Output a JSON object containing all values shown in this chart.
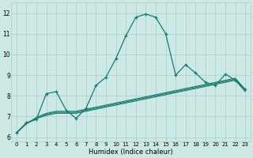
{
  "xlabel": "Humidex (Indice chaleur)",
  "xlim": [
    -0.5,
    23.5
  ],
  "ylim": [
    5.8,
    12.5
  ],
  "yticks": [
    6,
    7,
    8,
    9,
    10,
    11,
    12
  ],
  "xticks": [
    0,
    1,
    2,
    3,
    4,
    5,
    6,
    7,
    8,
    9,
    10,
    11,
    12,
    13,
    14,
    15,
    16,
    17,
    18,
    19,
    20,
    21,
    22,
    23
  ],
  "bg_color": "#cce9e6",
  "grid_color": "#aacfcc",
  "line_color": "#1a7a6e",
  "line1_y": [
    6.2,
    6.7,
    6.85,
    8.1,
    8.2,
    7.3,
    6.9,
    7.4,
    8.5,
    8.9,
    9.8,
    10.9,
    11.8,
    11.95,
    11.8,
    11.0,
    9.0,
    9.5,
    9.1,
    8.65,
    8.5,
    9.05,
    8.75,
    8.3
  ],
  "line2_y": [
    6.2,
    6.65,
    6.9,
    7.05,
    7.15,
    7.15,
    7.15,
    7.25,
    7.35,
    7.45,
    7.55,
    7.65,
    7.75,
    7.85,
    7.95,
    8.05,
    8.15,
    8.25,
    8.35,
    8.45,
    8.55,
    8.65,
    8.75,
    8.2
  ],
  "line3_y": [
    6.2,
    6.65,
    6.9,
    7.1,
    7.2,
    7.2,
    7.2,
    7.3,
    7.4,
    7.5,
    7.6,
    7.7,
    7.8,
    7.9,
    8.0,
    8.1,
    8.2,
    8.3,
    8.4,
    8.5,
    8.6,
    8.7,
    8.8,
    8.25
  ],
  "line4_y": [
    6.2,
    6.65,
    6.95,
    7.15,
    7.25,
    7.25,
    7.25,
    7.35,
    7.45,
    7.55,
    7.65,
    7.75,
    7.85,
    7.95,
    8.05,
    8.15,
    8.25,
    8.35,
    8.45,
    8.55,
    8.65,
    8.75,
    8.85,
    8.3
  ]
}
